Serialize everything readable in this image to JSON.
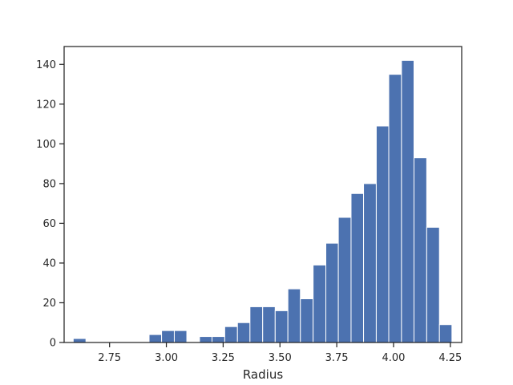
{
  "chart_data": {
    "type": "bar",
    "title": "",
    "xlabel": "Radius",
    "ylabel": "",
    "xlim": [
      2.55,
      4.3
    ],
    "ylim": [
      0,
      149
    ],
    "bar_color": "#4c72b0",
    "grid": false,
    "x_ticks": [
      {
        "value": 2.75,
        "label": "2.75"
      },
      {
        "value": 3.0,
        "label": "3.00"
      },
      {
        "value": 3.25,
        "label": "3.25"
      },
      {
        "value": 3.5,
        "label": "3.50"
      },
      {
        "value": 3.75,
        "label": "3.75"
      },
      {
        "value": 4.0,
        "label": "4.00"
      },
      {
        "value": 4.25,
        "label": "4.25"
      }
    ],
    "y_ticks": [
      {
        "value": 0,
        "label": "0"
      },
      {
        "value": 20,
        "label": "20"
      },
      {
        "value": 40,
        "label": "40"
      },
      {
        "value": 60,
        "label": "60"
      },
      {
        "value": 80,
        "label": "80"
      },
      {
        "value": 100,
        "label": "100"
      },
      {
        "value": 120,
        "label": "120"
      },
      {
        "value": 140,
        "label": "140"
      }
    ],
    "bins": [
      {
        "x0": 2.59,
        "x1": 2.646,
        "count": 2
      },
      {
        "x0": 2.646,
        "x1": 2.701,
        "count": 0
      },
      {
        "x0": 2.701,
        "x1": 2.757,
        "count": 0
      },
      {
        "x0": 2.757,
        "x1": 2.812,
        "count": 0
      },
      {
        "x0": 2.812,
        "x1": 2.868,
        "count": 0
      },
      {
        "x0": 2.868,
        "x1": 2.924,
        "count": 0
      },
      {
        "x0": 2.924,
        "x1": 2.979,
        "count": 4
      },
      {
        "x0": 2.979,
        "x1": 3.035,
        "count": 6
      },
      {
        "x0": 3.035,
        "x1": 3.09,
        "count": 6
      },
      {
        "x0": 3.09,
        "x1": 3.146,
        "count": 0
      },
      {
        "x0": 3.146,
        "x1": 3.201,
        "count": 3
      },
      {
        "x0": 3.201,
        "x1": 3.257,
        "count": 3
      },
      {
        "x0": 3.257,
        "x1": 3.313,
        "count": 8
      },
      {
        "x0": 3.313,
        "x1": 3.368,
        "count": 10
      },
      {
        "x0": 3.368,
        "x1": 3.424,
        "count": 18
      },
      {
        "x0": 3.424,
        "x1": 3.479,
        "count": 18
      },
      {
        "x0": 3.479,
        "x1": 3.535,
        "count": 16
      },
      {
        "x0": 3.535,
        "x1": 3.59,
        "count": 27
      },
      {
        "x0": 3.59,
        "x1": 3.646,
        "count": 22
      },
      {
        "x0": 3.646,
        "x1": 3.702,
        "count": 39
      },
      {
        "x0": 3.702,
        "x1": 3.757,
        "count": 50
      },
      {
        "x0": 3.757,
        "x1": 3.813,
        "count": 63
      },
      {
        "x0": 3.813,
        "x1": 3.868,
        "count": 75
      },
      {
        "x0": 3.868,
        "x1": 3.924,
        "count": 80
      },
      {
        "x0": 3.924,
        "x1": 3.979,
        "count": 109
      },
      {
        "x0": 3.979,
        "x1": 4.035,
        "count": 135
      },
      {
        "x0": 4.035,
        "x1": 4.09,
        "count": 142
      },
      {
        "x0": 4.09,
        "x1": 4.146,
        "count": 93
      },
      {
        "x0": 4.146,
        "x1": 4.202,
        "count": 58
      },
      {
        "x0": 4.202,
        "x1": 4.257,
        "count": 9
      }
    ]
  }
}
